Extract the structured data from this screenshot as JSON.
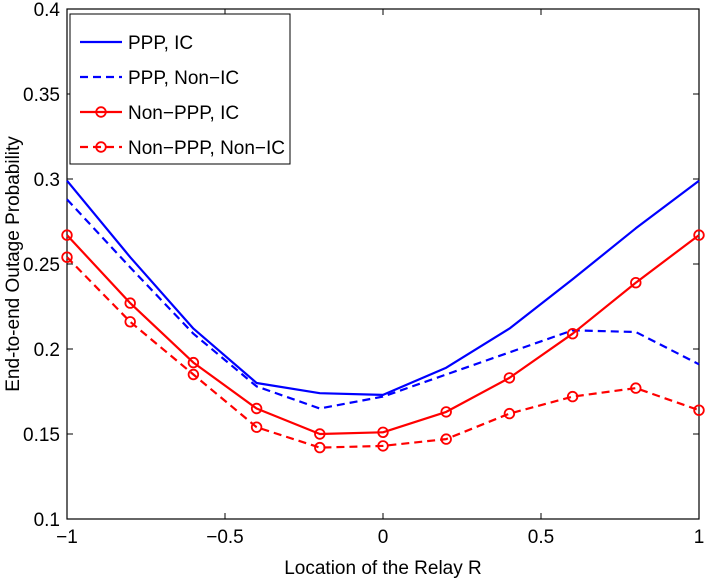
{
  "chart_data": {
    "type": "line",
    "title": "",
    "xlabel": "Location of the Relay R",
    "ylabel": "End-to-end Outage Probability",
    "xlim": [
      -1,
      1
    ],
    "ylim": [
      0.1,
      0.4
    ],
    "xticks": [
      -1,
      -0.5,
      0,
      0.5,
      1
    ],
    "xtick_labels": [
      "−1",
      "−0.5",
      "0",
      "0.5",
      "1"
    ],
    "yticks": [
      0.1,
      0.15,
      0.2,
      0.25,
      0.3,
      0.35,
      0.4
    ],
    "ytick_labels": [
      "0.1",
      "0.15",
      "0.2",
      "0.25",
      "0.3",
      "0.35",
      "0.4"
    ],
    "grid": false,
    "legend_position": "top-left",
    "x": [
      -1,
      -0.8,
      -0.6,
      -0.4,
      -0.2,
      0,
      0.2,
      0.4,
      0.6,
      0.8,
      1
    ],
    "series": [
      {
        "name": "PPP, IC",
        "color": "#0000ff",
        "line_style": "solid",
        "marker": "none",
        "values": [
          0.299,
          0.254,
          0.212,
          0.18,
          0.174,
          0.173,
          0.189,
          0.212,
          0.241,
          0.271,
          0.299
        ]
      },
      {
        "name": "PPP, Non−IC",
        "color": "#0000ff",
        "line_style": "dashed",
        "marker": "none",
        "values": [
          0.288,
          0.248,
          0.209,
          0.178,
          0.165,
          0.172,
          0.185,
          0.198,
          0.211,
          0.21,
          0.191
        ]
      },
      {
        "name": "Non−PPP, IC",
        "color": "#ff0000",
        "line_style": "solid",
        "marker": "circle",
        "values": [
          0.267,
          0.227,
          0.192,
          0.165,
          0.15,
          0.151,
          0.163,
          0.183,
          0.209,
          0.239,
          0.267
        ]
      },
      {
        "name": "Non−PPP, Non−IC",
        "color": "#ff0000",
        "line_style": "dashed",
        "marker": "circle",
        "values": [
          0.254,
          0.216,
          0.185,
          0.154,
          0.142,
          0.143,
          0.147,
          0.162,
          0.172,
          0.177,
          0.164
        ]
      }
    ]
  }
}
